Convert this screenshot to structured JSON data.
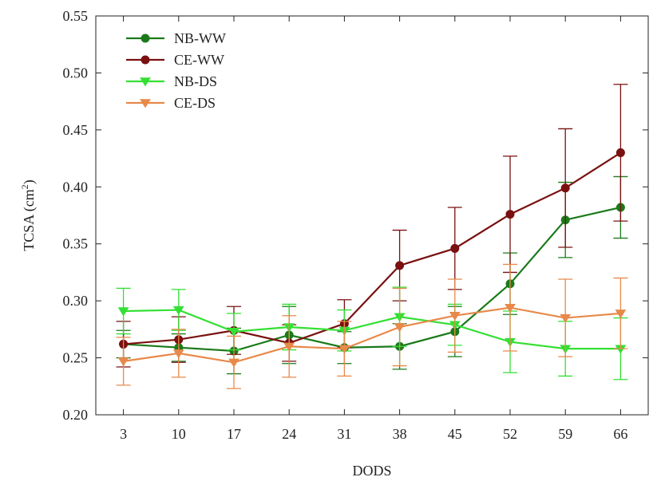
{
  "chart_data": {
    "type": "line",
    "xlabel": "DODS",
    "ylabel_main": "TCSA (cm",
    "ylabel_sup": "2",
    "ylabel_close": ")",
    "categories": [
      "3",
      "10",
      "17",
      "24",
      "31",
      "38",
      "45",
      "52",
      "59",
      "66"
    ],
    "ylim": [
      0.2,
      0.55
    ],
    "yticks": [
      "0.20",
      "0.25",
      "0.30",
      "0.35",
      "0.40",
      "0.45",
      "0.50",
      "0.55"
    ],
    "legend_position": "top-left",
    "grid": false,
    "series": [
      {
        "name": "NB-WW",
        "color": "#1a7a1a",
        "marker": "circle",
        "values": [
          0.262,
          0.259,
          0.256,
          0.27,
          0.259,
          0.26,
          0.273,
          0.315,
          0.371,
          0.382
        ],
        "errors": [
          0.012,
          0.012,
          0.02,
          0.025,
          0.014,
          0.02,
          0.022,
          0.027,
          0.033,
          0.027
        ]
      },
      {
        "name": "CE-WW",
        "color": "#7a1010",
        "marker": "circle",
        "values": [
          0.262,
          0.266,
          0.274,
          0.263,
          0.28,
          0.331,
          0.346,
          0.376,
          0.399,
          0.43
        ],
        "errors": [
          0.02,
          0.02,
          0.021,
          0.016,
          0.021,
          0.031,
          0.036,
          0.051,
          0.052,
          0.06
        ]
      },
      {
        "name": "NB-DS",
        "color": "#33e033",
        "marker": "triangle-down",
        "values": [
          0.291,
          0.292,
          0.273,
          0.277,
          0.274,
          0.286,
          0.279,
          0.264,
          0.258,
          0.258
        ],
        "errors": [
          0.02,
          0.018,
          0.016,
          0.02,
          0.018,
          0.026,
          0.018,
          0.027,
          0.024,
          0.027
        ]
      },
      {
        "name": "CE-DS",
        "color": "#e8894a",
        "marker": "triangle-down",
        "values": [
          0.247,
          0.254,
          0.246,
          0.26,
          0.258,
          0.277,
          0.287,
          0.294,
          0.285,
          0.289
        ],
        "errors": [
          0.021,
          0.021,
          0.023,
          0.027,
          0.024,
          0.034,
          0.032,
          0.038,
          0.034,
          0.031
        ]
      }
    ]
  }
}
